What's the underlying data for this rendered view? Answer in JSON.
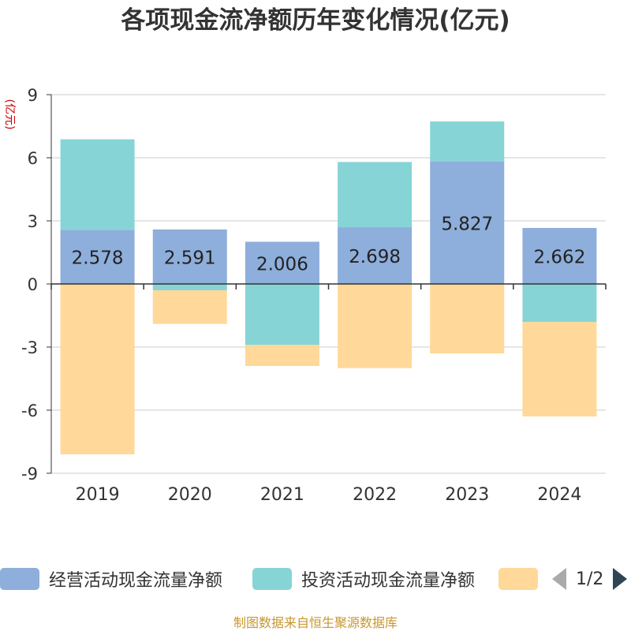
{
  "title": "各项现金流净额历年变化情况(亿元)",
  "y_unit": "(亿元)",
  "source": "制图数据来自恒生聚源数据库",
  "legend": {
    "items": [
      {
        "label": "经营活动现金流量净额",
        "color": "#8eaedb"
      },
      {
        "label": "投资活动现金流量净额",
        "color": "#87d4d6"
      },
      {
        "label": "",
        "color": "#ffd89a"
      }
    ],
    "page": "1/2"
  },
  "chart_data": {
    "type": "bar",
    "stacked": true,
    "categories": [
      "2019",
      "2020",
      "2021",
      "2022",
      "2023",
      "2024"
    ],
    "ylim": [
      -9,
      9
    ],
    "yticks": [
      "9",
      "6",
      "3",
      "0",
      "-3",
      "-6",
      "-9"
    ],
    "grid": true,
    "legend_position": "bottom",
    "series": [
      {
        "name": "经营活动现金流量净额",
        "color": "#8eaedb",
        "values": [
          2.578,
          2.591,
          2.006,
          2.698,
          5.827,
          2.662
        ],
        "labels": [
          "2.578",
          "2.591",
          "2.006",
          "2.698",
          "5.827",
          "2.662"
        ]
      },
      {
        "name": "投资活动现金流量净额",
        "color": "#87d4d6",
        "values": [
          4.3,
          -0.3,
          -2.9,
          3.1,
          1.9,
          -1.8
        ]
      },
      {
        "color": "#ffd89a",
        "values": [
          -8.1,
          -1.6,
          -1.0,
          -4.0,
          -3.3,
          -4.5
        ]
      }
    ]
  }
}
